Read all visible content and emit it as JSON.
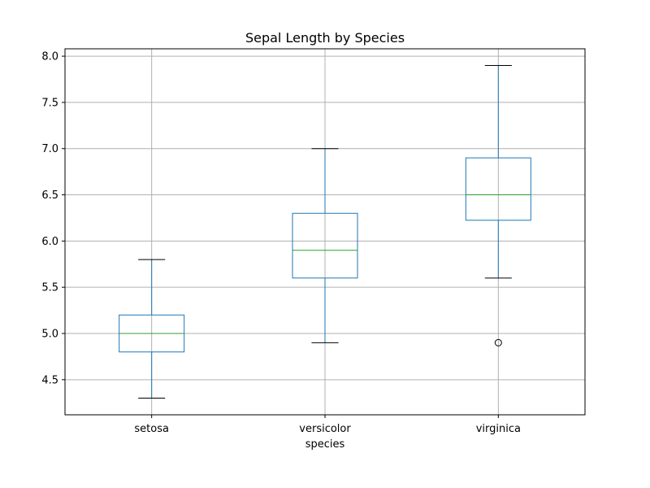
{
  "chart_data": {
    "type": "box",
    "title": "Sepal Length by Species",
    "xlabel": "species",
    "ylabel": "",
    "ylim": [
      4.12,
      8.08
    ],
    "yticks": [
      "4.5",
      "5.0",
      "5.5",
      "6.0",
      "6.5",
      "7.0",
      "7.5",
      "8.0"
    ],
    "grid": true,
    "categories": [
      "setosa",
      "versicolor",
      "virginica"
    ],
    "boxes": [
      {
        "category": "setosa",
        "whisker_low": 4.3,
        "q1": 4.8,
        "median": 5.0,
        "q3": 5.2,
        "whisker_high": 5.8,
        "outliers": []
      },
      {
        "category": "versicolor",
        "whisker_low": 4.9,
        "q1": 5.6,
        "median": 5.9,
        "q3": 6.3,
        "whisker_high": 7.0,
        "outliers": []
      },
      {
        "category": "virginica",
        "whisker_low": 5.6,
        "q1": 6.225,
        "median": 6.5,
        "q3": 6.9,
        "whisker_high": 7.9,
        "outliers": [
          4.9
        ]
      }
    ],
    "colors": {
      "box": "#1f77b4",
      "median": "#2ca02c",
      "whisker_cap": "#000000",
      "grid": "#b0b0b0",
      "axes": "#000000"
    }
  }
}
